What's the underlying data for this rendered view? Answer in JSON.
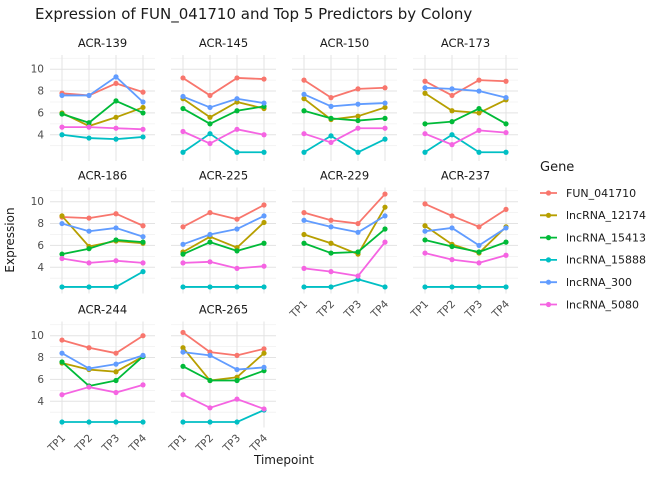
{
  "title": "Expression of FUN_041710 and Top 5 Predictors by Colony",
  "chart_data": {
    "type": "line",
    "title": "Expression of FUN_041710 and Top 5 Predictors by Colony",
    "xlabel": "Timepoint",
    "ylabel": "Expression",
    "legend_title": "Gene",
    "legend_position": "right",
    "grid": true,
    "x": [
      "TP1",
      "TP2",
      "TP3",
      "TP4"
    ],
    "yticks": [
      4,
      6,
      8,
      10
    ],
    "yticks_minor": [
      3,
      5,
      7,
      9,
      11
    ],
    "ylim": [
      1.6,
      11.3
    ],
    "series": [
      {
        "name": "FUN_041710",
        "color": "#F8766D"
      },
      {
        "name": "lncRNA_12174",
        "color": "#B79F00"
      },
      {
        "name": "lncRNA_15413",
        "color": "#00BA38"
      },
      {
        "name": "lncRNA_15888",
        "color": "#00BFC4"
      },
      {
        "name": "lncRNA_300",
        "color": "#619CFF"
      },
      {
        "name": "lncRNA_5080",
        "color": "#F564E2"
      }
    ],
    "facets": [
      {
        "name": "ACR-139",
        "values": {
          "FUN_041710": [
            7.8,
            7.6,
            8.7,
            7.9
          ],
          "lncRNA_12174": [
            6.0,
            4.8,
            5.6,
            6.5
          ],
          "lncRNA_15413": [
            5.9,
            5.1,
            7.1,
            6.0
          ],
          "lncRNA_15888": [
            4.0,
            3.7,
            3.6,
            3.8
          ],
          "lncRNA_300": [
            7.6,
            7.6,
            9.3,
            7.0
          ],
          "lncRNA_5080": [
            4.7,
            4.7,
            4.6,
            4.5
          ]
        }
      },
      {
        "name": "ACR-145",
        "values": {
          "FUN_041710": [
            9.2,
            7.6,
            9.2,
            9.1
          ],
          "lncRNA_12174": [
            7.3,
            5.6,
            7.0,
            6.4
          ],
          "lncRNA_15413": [
            6.4,
            5.0,
            6.2,
            6.6
          ],
          "lncRNA_15888": [
            2.4,
            4.1,
            2.4,
            2.4
          ],
          "lncRNA_300": [
            7.5,
            6.5,
            7.3,
            6.9
          ],
          "lncRNA_5080": [
            4.3,
            3.2,
            4.5,
            4.0
          ]
        }
      },
      {
        "name": "ACR-150",
        "values": {
          "FUN_041710": [
            9.0,
            7.4,
            8.2,
            8.3
          ],
          "lncRNA_12174": [
            7.3,
            5.4,
            5.7,
            6.5
          ],
          "lncRNA_15413": [
            6.2,
            5.5,
            5.3,
            5.5
          ],
          "lncRNA_15888": [
            2.4,
            3.9,
            2.4,
            3.6
          ],
          "lncRNA_300": [
            7.7,
            6.6,
            6.8,
            6.9
          ],
          "lncRNA_5080": [
            4.1,
            3.3,
            4.6,
            4.6
          ]
        }
      },
      {
        "name": "ACR-173",
        "values": {
          "FUN_041710": [
            8.9,
            7.6,
            9.0,
            8.9
          ],
          "lncRNA_12174": [
            7.8,
            6.2,
            6.0,
            7.2
          ],
          "lncRNA_15413": [
            5.0,
            5.2,
            6.4,
            5.0
          ],
          "lncRNA_15888": [
            2.4,
            4.0,
            2.4,
            2.4
          ],
          "lncRNA_300": [
            8.3,
            8.2,
            8.0,
            7.4
          ],
          "lncRNA_5080": [
            4.1,
            3.1,
            4.4,
            4.2
          ]
        }
      },
      {
        "name": "ACR-186",
        "values": {
          "FUN_041710": [
            8.6,
            8.5,
            8.9,
            7.8
          ],
          "lncRNA_12174": [
            8.7,
            5.9,
            6.4,
            6.2
          ],
          "lncRNA_15413": [
            5.2,
            5.7,
            6.5,
            6.3
          ],
          "lncRNA_15888": [
            2.2,
            2.2,
            2.2,
            3.6
          ],
          "lncRNA_300": [
            8.0,
            7.3,
            7.6,
            6.8
          ],
          "lncRNA_5080": [
            4.8,
            4.4,
            4.6,
            4.4
          ]
        }
      },
      {
        "name": "ACR-225",
        "values": {
          "FUN_041710": [
            7.7,
            9.0,
            8.4,
            9.7
          ],
          "lncRNA_12174": [
            5.4,
            6.8,
            5.8,
            8.1
          ],
          "lncRNA_15413": [
            5.2,
            6.3,
            5.5,
            6.2
          ],
          "lncRNA_15888": [
            2.2,
            2.2,
            2.2,
            2.2
          ],
          "lncRNA_300": [
            6.1,
            7.0,
            7.5,
            8.7
          ],
          "lncRNA_5080": [
            4.4,
            4.5,
            3.9,
            4.1
          ]
        }
      },
      {
        "name": "ACR-229",
        "values": {
          "FUN_041710": [
            9.0,
            8.3,
            8.0,
            10.7
          ],
          "lncRNA_12174": [
            7.0,
            6.2,
            5.2,
            9.5
          ],
          "lncRNA_15413": [
            6.2,
            5.3,
            5.4,
            7.5
          ],
          "lncRNA_15888": [
            2.2,
            2.2,
            2.9,
            2.2
          ],
          "lncRNA_300": [
            8.3,
            7.7,
            7.2,
            8.7
          ],
          "lncRNA_5080": [
            3.9,
            3.6,
            3.2,
            6.3
          ]
        }
      },
      {
        "name": "ACR-237",
        "values": {
          "FUN_041710": [
            9.8,
            8.7,
            7.7,
            9.3
          ],
          "lncRNA_12174": [
            7.8,
            6.1,
            5.3,
            7.7
          ],
          "lncRNA_15413": [
            6.5,
            5.9,
            5.4,
            6.3
          ],
          "lncRNA_15888": [
            2.2,
            2.2,
            2.2,
            2.2
          ],
          "lncRNA_300": [
            7.3,
            7.6,
            6.0,
            7.6
          ],
          "lncRNA_5080": [
            5.3,
            4.7,
            4.4,
            5.1
          ]
        }
      },
      {
        "name": "ACR-244",
        "values": {
          "FUN_041710": [
            9.6,
            8.9,
            8.4,
            10.0
          ],
          "lncRNA_12174": [
            7.5,
            6.9,
            6.7,
            8.1
          ],
          "lncRNA_15413": [
            7.6,
            5.4,
            5.9,
            8.1
          ],
          "lncRNA_15888": [
            2.1,
            2.1,
            2.1,
            2.1
          ],
          "lncRNA_300": [
            8.4,
            7.0,
            7.4,
            8.2
          ],
          "lncRNA_5080": [
            4.6,
            5.3,
            4.8,
            5.5
          ]
        }
      },
      {
        "name": "ACR-265",
        "values": {
          "FUN_041710": [
            10.3,
            8.5,
            8.2,
            8.8
          ],
          "lncRNA_12174": [
            8.9,
            5.9,
            6.2,
            8.4
          ],
          "lncRNA_15413": [
            7.2,
            5.9,
            5.9,
            6.8
          ],
          "lncRNA_15888": [
            2.1,
            2.1,
            2.1,
            3.2
          ],
          "lncRNA_300": [
            8.5,
            8.2,
            6.9,
            7.1
          ],
          "lncRNA_5080": [
            4.6,
            3.4,
            4.2,
            3.3
          ]
        }
      }
    ]
  }
}
